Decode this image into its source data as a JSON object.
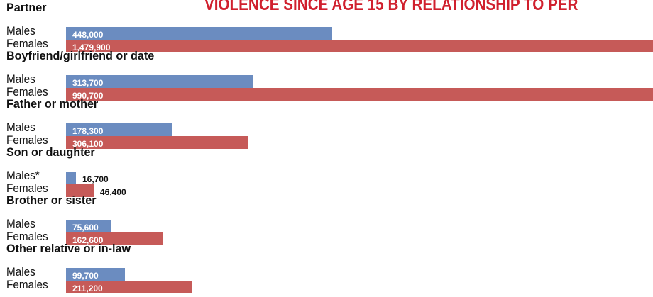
{
  "colors": {
    "title": "#d0202e",
    "males": "#6b8cc0",
    "females": "#c65a58",
    "inside_label": "#ffffff",
    "outside_label": "#111111"
  },
  "chart_data": {
    "type": "bar",
    "orientation": "horizontal",
    "title": "VIOLENCE SINCE AGE 15 BY RELATIONSHIP TO PER",
    "categories": [
      "Partner",
      "Boyfriend/girlfriend or date",
      "Father or mother",
      "Son or daughter",
      "Brother or sister",
      "Other relative or in-law"
    ],
    "series": [
      {
        "name": "Males",
        "row_labels": [
          "Males",
          "Males",
          "Males",
          "Males*",
          "Males",
          "Males"
        ],
        "values": [
          448000,
          313700,
          178300,
          16700,
          75600,
          99700
        ],
        "value_labels": [
          "448,000",
          "313,700",
          "178,300",
          "16,700",
          "75,600",
          "99,700"
        ]
      },
      {
        "name": "Females",
        "row_labels": [
          "Females",
          "Females",
          "Females",
          "Females",
          "Females",
          "Females"
        ],
        "values": [
          1479900,
          990700,
          306100,
          46400,
          162600,
          211200
        ],
        "value_labels": [
          "1,479,900",
          "990,700",
          "306,100",
          "46,400",
          "162,600",
          "211,200"
        ]
      }
    ]
  }
}
